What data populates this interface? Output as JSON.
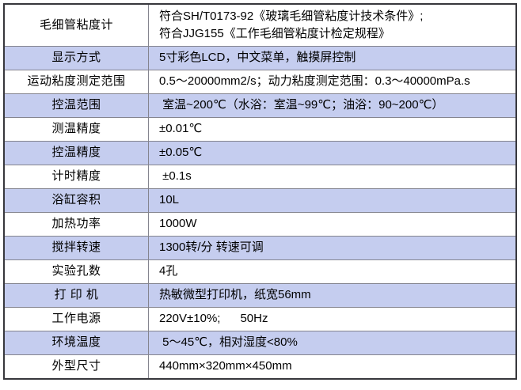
{
  "page": {
    "background_color": "#ffffff"
  },
  "table": {
    "name": "capillary-viscometer-specifications",
    "outer_border_color": "#37373c",
    "grid_line_color": "#84848e",
    "alt_row_color": "#c5cdef",
    "rows": [
      {
        "label": "毛细管粘度计",
        "value": "符合SH/T0173-92《玻璃毛细管粘度计技术条件》;\n符合JJG155《工作毛细管粘度计检定规程》"
      },
      {
        "label": "显示方式",
        "value": "5寸彩色LCD，中文菜单，触摸屏控制"
      },
      {
        "label": "运动粘度测定范围",
        "value": "0.5～20000mm2/s；动力粘度测定范围：0.3～40000mPa.s"
      },
      {
        "label": "控温范围",
        "value": " 室温~200℃（水浴：室温~99℃；油浴：90~200℃）"
      },
      {
        "label": "测温精度",
        "value": "±0.01℃"
      },
      {
        "label": "控温精度",
        "value": "±0.05℃"
      },
      {
        "label": "计时精度",
        "value": " ±0.1s"
      },
      {
        "label": "浴缸容积",
        "value": "10L"
      },
      {
        "label": "加热功率",
        "value": "1000W"
      },
      {
        "label": "搅拌转速",
        "value": "1300转/分 转速可调"
      },
      {
        "label": "实验孔数",
        "value": "4孔"
      },
      {
        "label": "打 印 机",
        "value": "热敏微型打印机，纸宽56mm"
      },
      {
        "label": "工作电源",
        "value": "220V±10%;      50Hz"
      },
      {
        "label": "环境温度",
        "value": " 5～45℃，相对湿度<80%"
      },
      {
        "label": "外型尺寸",
        "value": "440mm×320mm×450mm"
      }
    ]
  }
}
